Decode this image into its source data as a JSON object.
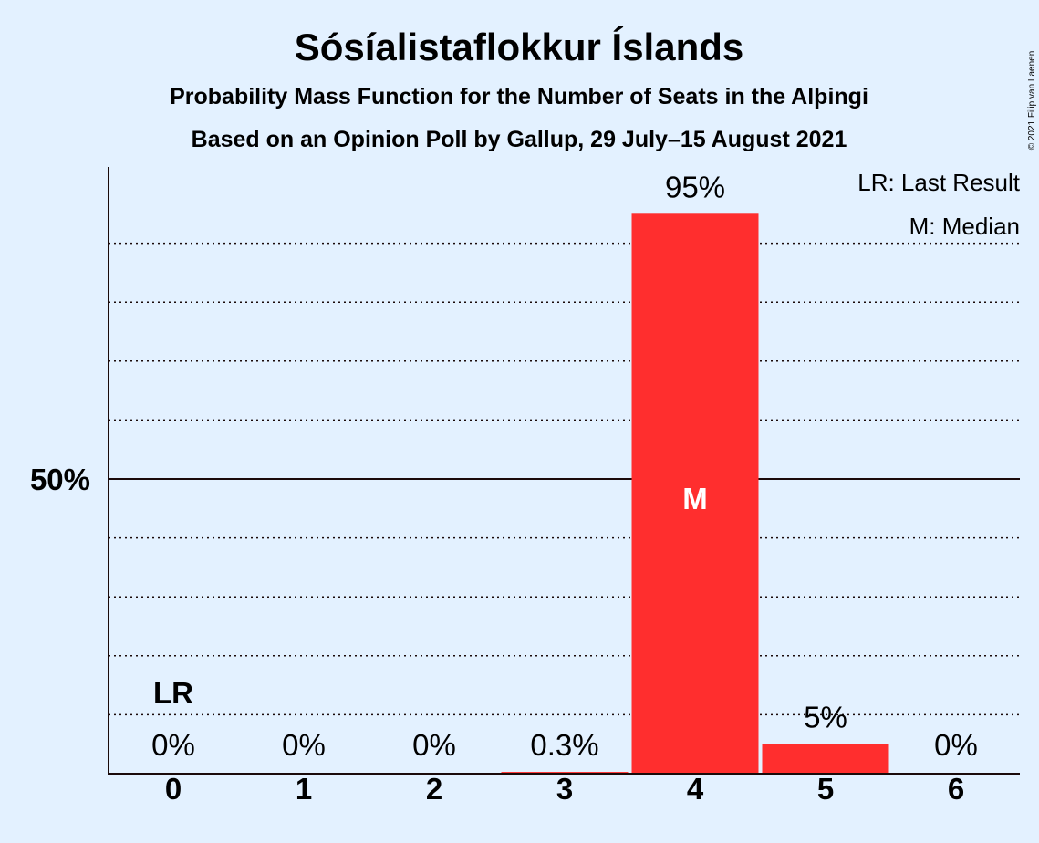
{
  "chart_data": {
    "type": "bar",
    "title": "Sósíalistaflokkur Íslands",
    "subtitle": "Probability Mass Function for the Number of Seats in the Alþingi",
    "subtitle2": "Based on an Opinion Poll by Gallup, 29 July–15 August 2021",
    "copyright": "© 2021 Filip van Laenen",
    "categories": [
      "0",
      "1",
      "2",
      "3",
      "4",
      "5",
      "6"
    ],
    "values": [
      0,
      0,
      0,
      0.3,
      95,
      5,
      0
    ],
    "value_labels": [
      "0%",
      "0%",
      "0%",
      "0.3%",
      "95%",
      "5%",
      "0%"
    ],
    "ylim": [
      0,
      100
    ],
    "y_tick_label": "50%",
    "y_tick_value": 50,
    "gridlines": [
      10,
      20,
      30,
      40,
      60,
      70,
      80,
      90
    ],
    "last_result_label": "LR",
    "last_result_category": "0",
    "median_label": "M",
    "median_category": "4",
    "legend": [
      "LR: Last Result",
      "M: Median"
    ],
    "legend_position": "top-right",
    "bar_color": "#ff2e2e",
    "background_color": "#e3f1ff"
  }
}
